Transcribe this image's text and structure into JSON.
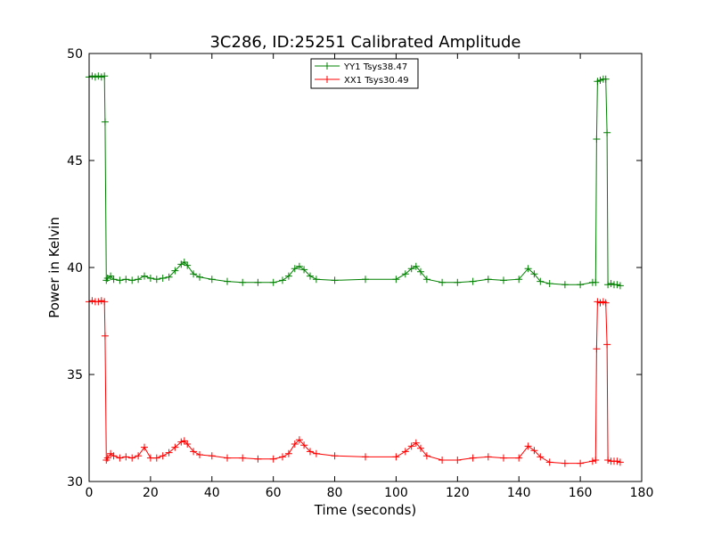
{
  "chart_data": {
    "type": "line",
    "title": "3C286, ID:25251 Calibrated Amplitude",
    "xlabel": "Time (seconds)",
    "ylabel": "Power in Kelvin",
    "xlim": [
      0,
      180
    ],
    "ylim": [
      30,
      50
    ],
    "xticks": [
      "0",
      "20",
      "40",
      "60",
      "80",
      "100",
      "120",
      "140",
      "160",
      "180"
    ],
    "yticks": [
      "30",
      "35",
      "40",
      "45",
      "50"
    ],
    "grid": false,
    "legend": "top-center",
    "series": [
      {
        "name": "YY1 Tsys38.47",
        "color": "#008000",
        "marker": "plus",
        "points": [
          [
            0,
            48.9
          ],
          [
            1,
            48.95
          ],
          [
            2,
            48.9
          ],
          [
            3,
            48.95
          ],
          [
            4,
            48.9
          ],
          [
            5,
            48.95
          ],
          [
            5.2,
            46.8
          ],
          [
            5.6,
            39.4
          ],
          [
            6,
            39.5
          ],
          [
            7,
            39.6
          ],
          [
            8,
            39.45
          ],
          [
            10,
            39.4
          ],
          [
            12,
            39.45
          ],
          [
            14,
            39.4
          ],
          [
            16,
            39.45
          ],
          [
            18,
            39.6
          ],
          [
            20,
            39.5
          ],
          [
            22,
            39.45
          ],
          [
            24,
            39.5
          ],
          [
            26,
            39.55
          ],
          [
            28,
            39.85
          ],
          [
            30,
            40.15
          ],
          [
            31,
            40.25
          ],
          [
            32,
            40.1
          ],
          [
            34,
            39.7
          ],
          [
            36,
            39.55
          ],
          [
            40,
            39.45
          ],
          [
            45,
            39.35
          ],
          [
            50,
            39.3
          ],
          [
            55,
            39.3
          ],
          [
            60,
            39.3
          ],
          [
            63,
            39.4
          ],
          [
            65,
            39.6
          ],
          [
            67,
            39.95
          ],
          [
            68.5,
            40.05
          ],
          [
            70,
            39.9
          ],
          [
            72,
            39.6
          ],
          [
            74,
            39.45
          ],
          [
            80,
            39.4
          ],
          [
            90,
            39.45
          ],
          [
            100,
            39.45
          ],
          [
            103,
            39.7
          ],
          [
            105,
            39.95
          ],
          [
            106.5,
            40.05
          ],
          [
            108,
            39.8
          ],
          [
            110,
            39.45
          ],
          [
            115,
            39.3
          ],
          [
            120,
            39.3
          ],
          [
            125,
            39.35
          ],
          [
            130,
            39.45
          ],
          [
            135,
            39.4
          ],
          [
            140,
            39.45
          ],
          [
            143,
            39.95
          ],
          [
            145,
            39.7
          ],
          [
            147,
            39.35
          ],
          [
            150,
            39.25
          ],
          [
            155,
            39.2
          ],
          [
            160,
            39.2
          ],
          [
            164,
            39.3
          ],
          [
            165,
            39.3
          ],
          [
            165.3,
            46.0
          ],
          [
            165.6,
            48.7
          ],
          [
            166.5,
            48.75
          ],
          [
            167.5,
            48.8
          ],
          [
            168.3,
            48.8
          ],
          [
            168.7,
            46.3
          ],
          [
            169,
            39.2
          ],
          [
            170,
            39.25
          ],
          [
            171,
            39.2
          ],
          [
            172,
            39.2
          ],
          [
            173,
            39.15
          ]
        ]
      },
      {
        "name": "XX1 Tsys30.49",
        "color": "#ff0000",
        "marker": "plus",
        "points": [
          [
            0,
            38.4
          ],
          [
            1,
            38.45
          ],
          [
            2,
            38.4
          ],
          [
            3,
            38.4
          ],
          [
            4,
            38.45
          ],
          [
            5,
            38.4
          ],
          [
            5.2,
            36.8
          ],
          [
            5.6,
            31.0
          ],
          [
            6,
            31.1
          ],
          [
            7,
            31.3
          ],
          [
            8,
            31.2
          ],
          [
            10,
            31.1
          ],
          [
            12,
            31.15
          ],
          [
            14,
            31.1
          ],
          [
            16,
            31.2
          ],
          [
            18,
            31.6
          ],
          [
            20,
            31.1
          ],
          [
            22,
            31.1
          ],
          [
            24,
            31.2
          ],
          [
            26,
            31.35
          ],
          [
            28,
            31.6
          ],
          [
            30,
            31.85
          ],
          [
            31,
            31.9
          ],
          [
            32,
            31.75
          ],
          [
            34,
            31.4
          ],
          [
            36,
            31.25
          ],
          [
            40,
            31.2
          ],
          [
            45,
            31.1
          ],
          [
            50,
            31.1
          ],
          [
            55,
            31.05
          ],
          [
            60,
            31.05
          ],
          [
            63,
            31.15
          ],
          [
            65,
            31.3
          ],
          [
            67,
            31.75
          ],
          [
            68.5,
            31.95
          ],
          [
            70,
            31.7
          ],
          [
            72,
            31.4
          ],
          [
            74,
            31.3
          ],
          [
            80,
            31.2
          ],
          [
            90,
            31.15
          ],
          [
            100,
            31.15
          ],
          [
            103,
            31.4
          ],
          [
            105,
            31.65
          ],
          [
            106.5,
            31.8
          ],
          [
            108,
            31.55
          ],
          [
            110,
            31.2
          ],
          [
            115,
            31.0
          ],
          [
            120,
            31.0
          ],
          [
            125,
            31.1
          ],
          [
            130,
            31.15
          ],
          [
            135,
            31.1
          ],
          [
            140,
            31.1
          ],
          [
            143,
            31.65
          ],
          [
            145,
            31.45
          ],
          [
            147,
            31.15
          ],
          [
            150,
            30.9
          ],
          [
            155,
            30.85
          ],
          [
            160,
            30.85
          ],
          [
            164,
            30.95
          ],
          [
            165,
            31.0
          ],
          [
            165.3,
            36.2
          ],
          [
            165.6,
            38.4
          ],
          [
            166.5,
            38.35
          ],
          [
            167.5,
            38.4
          ],
          [
            168.3,
            38.35
          ],
          [
            168.7,
            36.4
          ],
          [
            169,
            31.0
          ],
          [
            170,
            30.95
          ],
          [
            171,
            30.95
          ],
          [
            172,
            30.95
          ],
          [
            173,
            30.9
          ]
        ]
      }
    ]
  }
}
